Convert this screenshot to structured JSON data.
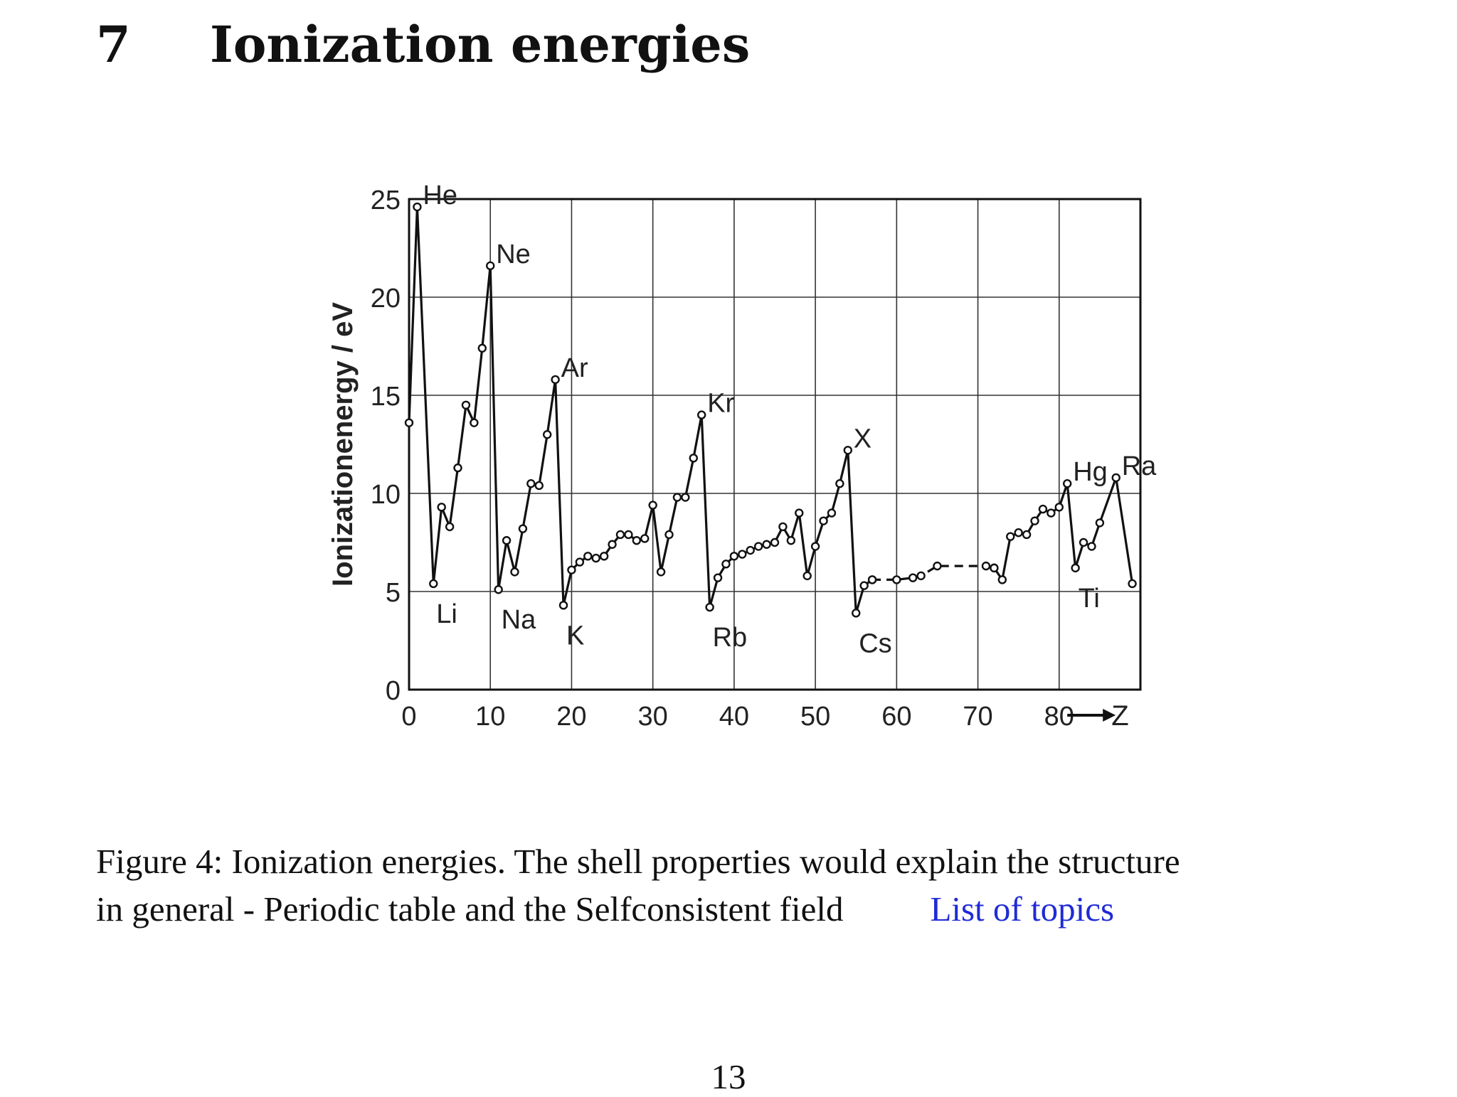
{
  "heading": {
    "number": "7",
    "title": "Ionization energies"
  },
  "caption": {
    "line1": "Figure 4: Ionization energies. The shell properties would explain the structure",
    "line2": "in general - Periodic table and the Selfconsistent field",
    "link_text": "List of topics"
  },
  "page_number": "13",
  "chart_data": {
    "type": "line",
    "ylabel": "Ionizationenergy / eV",
    "x_tick_labels": [
      "0",
      "10",
      "20",
      "30",
      "40",
      "50",
      "60",
      "70",
      "80"
    ],
    "x_axis_end_label": "Z",
    "y_tick_labels": [
      "0",
      "5",
      "10",
      "15",
      "20",
      "25"
    ],
    "xlim": [
      0,
      90
    ],
    "ylim": [
      0,
      25
    ],
    "grid": true,
    "line_color": "#111111",
    "markers": "open-circle",
    "series": [
      {
        "points": [
          [
            0,
            13.6
          ],
          [
            1,
            24.6
          ],
          [
            3,
            5.4
          ],
          [
            4,
            9.3
          ],
          [
            5,
            8.3
          ],
          [
            6,
            11.3
          ],
          [
            7,
            14.5
          ],
          [
            8,
            13.6
          ],
          [
            9,
            17.4
          ],
          [
            10,
            21.6
          ],
          [
            11,
            5.1
          ],
          [
            12,
            7.6
          ],
          [
            13,
            6.0
          ],
          [
            14,
            8.2
          ],
          [
            15,
            10.5
          ],
          [
            16,
            10.4
          ],
          [
            17,
            13.0
          ],
          [
            18,
            15.8
          ],
          [
            19,
            4.3
          ],
          [
            20,
            6.1
          ],
          [
            21,
            6.5
          ],
          [
            22,
            6.8
          ],
          [
            23,
            6.7
          ],
          [
            24,
            6.8
          ],
          [
            25,
            7.4
          ],
          [
            26,
            7.9
          ],
          [
            27,
            7.9
          ],
          [
            28,
            7.6
          ],
          [
            29,
            7.7
          ],
          [
            30,
            9.4
          ],
          [
            31,
            6.0
          ],
          [
            32,
            7.9
          ],
          [
            33,
            9.8
          ],
          [
            34,
            9.8
          ],
          [
            35,
            11.8
          ],
          [
            36,
            14.0
          ],
          [
            37,
            4.2
          ],
          [
            38,
            5.7
          ],
          [
            39,
            6.4
          ],
          [
            40,
            6.8
          ],
          [
            41,
            6.9
          ],
          [
            42,
            7.1
          ],
          [
            43,
            7.3
          ],
          [
            44,
            7.4
          ],
          [
            45,
            7.5
          ],
          [
            46,
            8.3
          ],
          [
            47,
            7.6
          ],
          [
            48,
            9.0
          ],
          [
            49,
            5.8
          ],
          [
            50,
            7.3
          ],
          [
            51,
            8.6
          ],
          [
            52,
            9.0
          ],
          [
            53,
            10.5
          ],
          [
            54,
            12.2
          ],
          [
            55,
            3.9
          ],
          [
            56,
            5.3
          ],
          [
            57,
            5.6
          ]
        ]
      },
      {
        "dashed": true,
        "points": [
          [
            57,
            5.6
          ],
          [
            60,
            5.6
          ],
          [
            62,
            5.7
          ],
          [
            63,
            5.8
          ],
          [
            65,
            6.3
          ],
          [
            71,
            6.3
          ],
          [
            72,
            6.2
          ]
        ]
      },
      {
        "points": [
          [
            72,
            6.2
          ],
          [
            73,
            5.6
          ],
          [
            74,
            7.8
          ],
          [
            75,
            8.0
          ],
          [
            76,
            7.9
          ],
          [
            77,
            8.6
          ],
          [
            78,
            9.2
          ],
          [
            79,
            9.0
          ],
          [
            80,
            9.3
          ],
          [
            81,
            10.5
          ],
          [
            82,
            6.2
          ],
          [
            83,
            7.5
          ],
          [
            84,
            7.3
          ],
          [
            85,
            8.5
          ],
          [
            87,
            10.8
          ],
          [
            89,
            5.4
          ]
        ]
      }
    ],
    "annotations": [
      {
        "text": "He",
        "x": 1,
        "y": 24.6
      },
      {
        "text": "Ne",
        "x": 10,
        "y": 21.6
      },
      {
        "text": "Ar",
        "x": 18,
        "y": 15.8
      },
      {
        "text": "Kr",
        "x": 36,
        "y": 14.0
      },
      {
        "text": "X",
        "x": 54,
        "y": 12.2
      },
      {
        "text": "Hg",
        "x": 81,
        "y": 10.5
      },
      {
        "text": "Ra",
        "x": 87,
        "y": 10.8
      },
      {
        "text": "Li",
        "x": 3,
        "y": 5.4
      },
      {
        "text": "Na",
        "x": 11,
        "y": 5.1
      },
      {
        "text": "K",
        "x": 19,
        "y": 4.3
      },
      {
        "text": "Rb",
        "x": 37,
        "y": 4.2
      },
      {
        "text": "Cs",
        "x": 55,
        "y": 3.9
      },
      {
        "text": "Ti",
        "x": 82,
        "y": 6.2
      }
    ]
  }
}
